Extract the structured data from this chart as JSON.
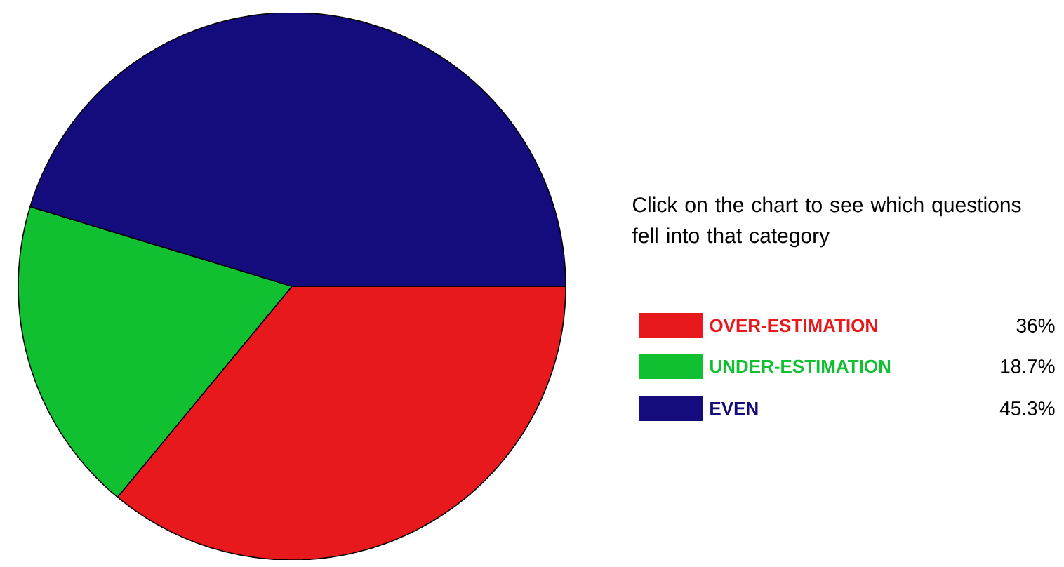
{
  "chart_data": {
    "type": "pie",
    "categories": [
      "OVER-ESTIMATION",
      "UNDER-ESTIMATION",
      "EVEN"
    ],
    "values": [
      36,
      18.7,
      45.3
    ],
    "value_labels": [
      "36%",
      "18.7%",
      "45.3%"
    ],
    "colors": [
      "#e8191c",
      "#10c030",
      "#140c7c"
    ],
    "legend": "right",
    "annotations": [
      "Click on the chart to see which questions fell into that category"
    ]
  }
}
